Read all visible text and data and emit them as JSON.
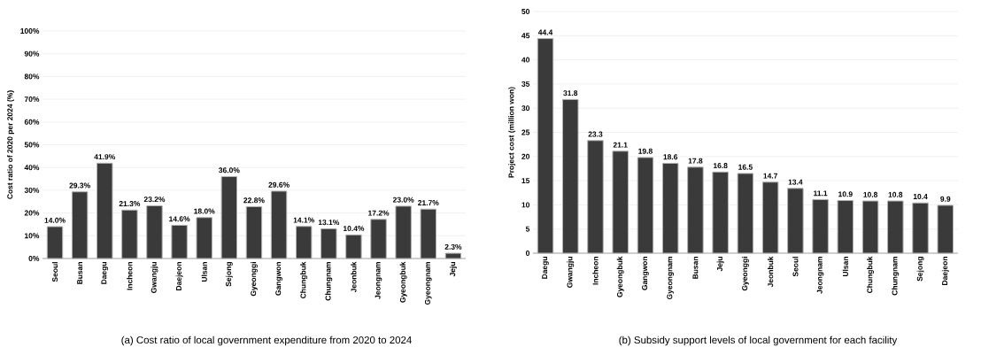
{
  "chart_data": [
    {
      "type": "bar",
      "title": "(a) Cost ratio of local government expenditure from 2020 to 2024",
      "ylabel": "Cost ratio of 2020 per 2024 (%)",
      "categories": [
        "Seoul",
        "Busan",
        "Daegu",
        "Incheon",
        "Gwangju",
        "Daejeon",
        "Ulsan",
        "Sejong",
        "Gyeonggi",
        "Gangwon",
        "Chungbuk",
        "Chungnam",
        "Jeonbuk",
        "Jeongnam",
        "Gyeongbuk",
        "Gyeongnam",
        "Jeju"
      ],
      "values": [
        14.0,
        29.3,
        41.9,
        21.3,
        23.2,
        14.6,
        18.0,
        36.0,
        22.8,
        29.6,
        14.1,
        13.1,
        10.4,
        17.2,
        23.0,
        21.7,
        2.3
      ],
      "value_labels": [
        "14.0%",
        "29.3%",
        "41.9%",
        "21.3%",
        "23.2%",
        "14.6%",
        "18.0%",
        "36.0%",
        "22.8%",
        "29.6%",
        "14.1%",
        "13.1%",
        "10.4%",
        "17.2%",
        "23.0%",
        "21.7%",
        "2.3%"
      ],
      "color": "#3a3a3a",
      "ylim": [
        0,
        100
      ],
      "yticks": [
        {
          "value": 0,
          "label": "0%"
        },
        {
          "value": 10,
          "label": "10%"
        },
        {
          "value": 20,
          "label": "20%"
        },
        {
          "value": 30,
          "label": "30%"
        },
        {
          "value": 40,
          "label": "40%"
        },
        {
          "value": 50,
          "label": "50%"
        },
        {
          "value": 60,
          "label": "60%"
        },
        {
          "value": 70,
          "label": "70%"
        },
        {
          "value": 80,
          "label": "80%"
        },
        {
          "value": 90,
          "label": "90%"
        },
        {
          "value": 100,
          "label": "100%"
        }
      ],
      "grid": "y"
    },
    {
      "type": "bar",
      "title": "(b) Subsidy support levels of local government for each facility",
      "ylabel": "Project cost (million won)",
      "categories": [
        "Daegu",
        "Gwangju",
        "Incheon",
        "Gyeongbuk",
        "Gangwon",
        "Gyeongnam",
        "Busan",
        "Jeju",
        "Gyeonggi",
        "Jeonbuk",
        "Seoul",
        "Jeongnam",
        "Ulsan",
        "Chungbuk",
        "Chungnam",
        "Sejong",
        "Daejeon"
      ],
      "values": [
        44.4,
        31.8,
        23.3,
        21.1,
        19.8,
        18.6,
        17.8,
        16.8,
        16.5,
        14.7,
        13.4,
        11.1,
        10.9,
        10.8,
        10.8,
        10.4,
        9.9
      ],
      "value_labels": [
        "44.4",
        "31.8",
        "23.3",
        "21.1",
        "19.8",
        "18.6",
        "17.8",
        "16.8",
        "16.5",
        "14.7",
        "13.4",
        "11.1",
        "10.9",
        "10.8",
        "10.8",
        "10.4",
        "9.9"
      ],
      "color": "#3a3a3a",
      "ylim": [
        0,
        50
      ],
      "yticks": [
        0,
        5,
        10,
        15,
        20,
        25,
        30,
        35,
        40,
        45,
        50
      ],
      "grid": "y"
    }
  ]
}
